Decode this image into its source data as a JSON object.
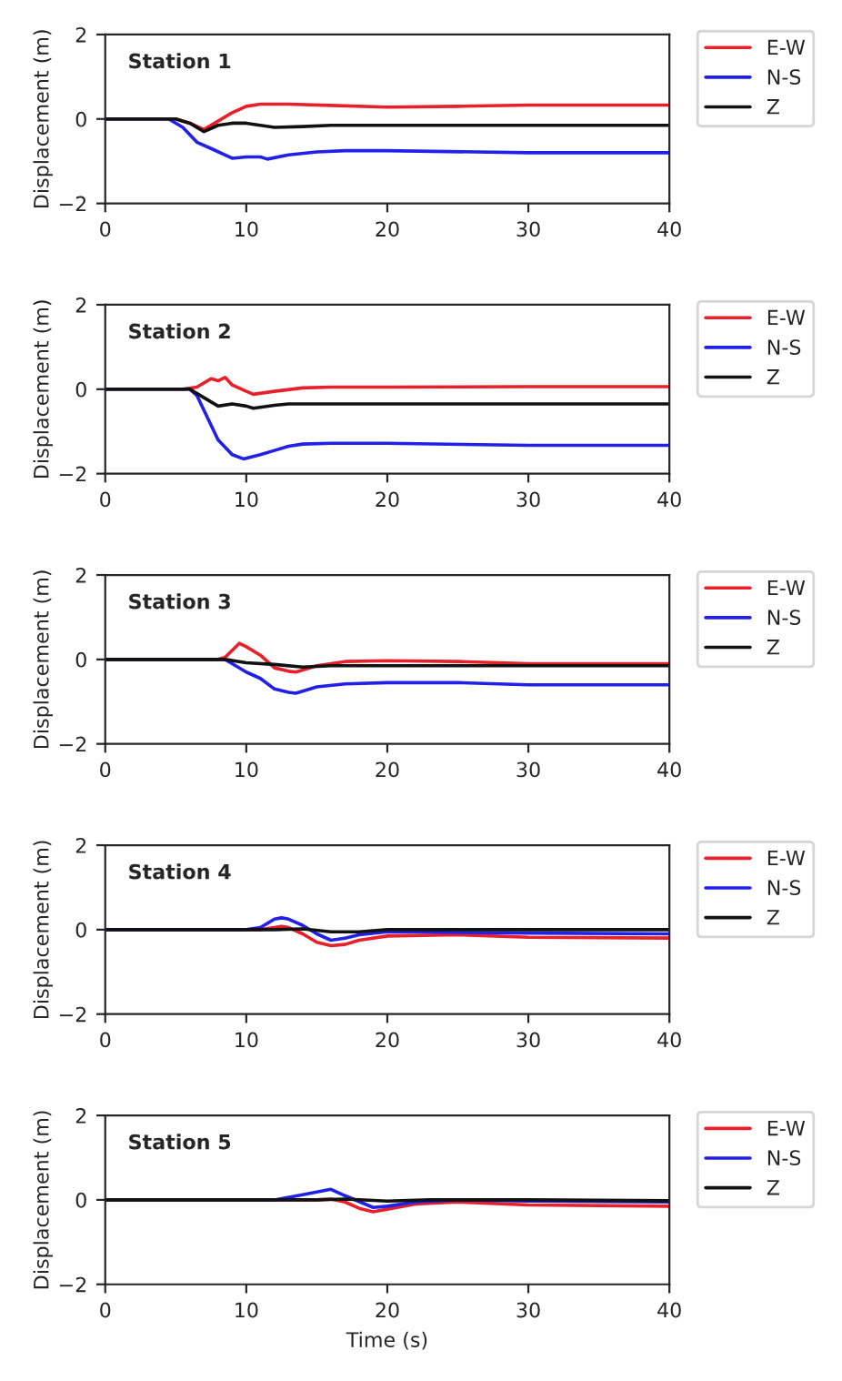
{
  "chart_data": [
    {
      "type": "line",
      "title": "Station 1",
      "ylabel": "Displacement (m)",
      "xlim": [
        0,
        40
      ],
      "xticks": [
        0,
        10,
        20,
        30,
        40
      ],
      "ylim": [
        -2,
        2
      ],
      "yticks": [
        -2,
        0,
        2
      ],
      "legend": "right",
      "grid": false,
      "series": [
        {
          "name": "E-W",
          "color": "#e8202a",
          "x": [
            0,
            5,
            6,
            7,
            8,
            9,
            10,
            11,
            13,
            16,
            20,
            25,
            30,
            40
          ],
          "values": [
            0,
            0,
            -0.1,
            -0.25,
            -0.05,
            0.15,
            0.3,
            0.35,
            0.35,
            0.32,
            0.28,
            0.3,
            0.33,
            0.33
          ]
        },
        {
          "name": "N-S",
          "color": "#2020e8",
          "x": [
            0,
            4.5,
            5.5,
            6.5,
            7.5,
            9,
            10,
            11,
            11.5,
            13,
            15,
            17,
            20,
            30,
            40
          ],
          "values": [
            0,
            0,
            -0.2,
            -0.55,
            -0.7,
            -0.93,
            -0.9,
            -0.9,
            -0.95,
            -0.85,
            -0.78,
            -0.75,
            -0.75,
            -0.8,
            -0.8
          ]
        },
        {
          "name": "Z",
          "color": "#111111",
          "x": [
            0,
            5,
            6,
            7,
            8,
            9,
            10,
            11,
            12,
            14,
            16,
            20,
            40
          ],
          "values": [
            0,
            0,
            -0.1,
            -0.3,
            -0.15,
            -0.1,
            -0.1,
            -0.15,
            -0.2,
            -0.18,
            -0.15,
            -0.15,
            -0.15
          ]
        }
      ]
    },
    {
      "type": "line",
      "title": "Station 2",
      "ylabel": "Displacement (m)",
      "xlim": [
        0,
        40
      ],
      "xticks": [
        0,
        10,
        20,
        30,
        40
      ],
      "ylim": [
        -2,
        2
      ],
      "yticks": [
        -2,
        0,
        2
      ],
      "legend": "right",
      "grid": false,
      "series": [
        {
          "name": "E-W",
          "color": "#e8202a",
          "x": [
            0,
            5.5,
            6.5,
            7.5,
            8,
            8.5,
            9,
            10,
            10.5,
            12,
            14,
            16,
            20,
            30,
            40
          ],
          "values": [
            0,
            0,
            0.05,
            0.25,
            0.2,
            0.28,
            0.1,
            -0.05,
            -0.12,
            -0.05,
            0.03,
            0.05,
            0.05,
            0.06,
            0.06
          ]
        },
        {
          "name": "N-S",
          "color": "#2020e8",
          "x": [
            0,
            6,
            6.5,
            7,
            8,
            9,
            9.8,
            11,
            12,
            13,
            14,
            16,
            20,
            30,
            40
          ],
          "values": [
            0,
            0,
            -0.15,
            -0.5,
            -1.2,
            -1.55,
            -1.65,
            -1.55,
            -1.45,
            -1.35,
            -1.3,
            -1.28,
            -1.28,
            -1.33,
            -1.33
          ]
        },
        {
          "name": "Z",
          "color": "#111111",
          "x": [
            0,
            6,
            7,
            8,
            9,
            10,
            10.5,
            12,
            13,
            16,
            20,
            40
          ],
          "values": [
            0,
            0,
            -0.2,
            -0.4,
            -0.35,
            -0.4,
            -0.45,
            -0.38,
            -0.35,
            -0.35,
            -0.35,
            -0.35
          ]
        }
      ]
    },
    {
      "type": "line",
      "title": "Station 3",
      "ylabel": "Displacement (m)",
      "xlim": [
        0,
        40
      ],
      "xticks": [
        0,
        10,
        20,
        30,
        40
      ],
      "ylim": [
        -2,
        2
      ],
      "yticks": [
        -2,
        0,
        2
      ],
      "legend": "right",
      "grid": false,
      "series": [
        {
          "name": "E-W",
          "color": "#e8202a",
          "x": [
            0,
            8,
            8.5,
            9.5,
            10,
            11,
            12,
            13,
            13.5,
            14,
            15,
            17,
            20,
            25,
            30,
            40
          ],
          "values": [
            0,
            0,
            0.05,
            0.38,
            0.3,
            0.1,
            -0.2,
            -0.28,
            -0.3,
            -0.25,
            -0.15,
            -0.05,
            -0.03,
            -0.05,
            -0.1,
            -0.1
          ]
        },
        {
          "name": "N-S",
          "color": "#2020e8",
          "x": [
            0,
            8.5,
            9,
            10,
            11,
            12,
            13,
            13.5,
            14,
            15,
            17,
            20,
            25,
            30,
            40
          ],
          "values": [
            0,
            0,
            -0.1,
            -0.3,
            -0.45,
            -0.7,
            -0.78,
            -0.8,
            -0.75,
            -0.65,
            -0.58,
            -0.55,
            -0.55,
            -0.6,
            -0.6
          ]
        },
        {
          "name": "Z",
          "color": "#111111",
          "x": [
            0,
            8.5,
            10,
            12,
            14,
            16,
            20,
            40
          ],
          "values": [
            0,
            0,
            -0.08,
            -0.12,
            -0.18,
            -0.15,
            -0.15,
            -0.15
          ]
        }
      ]
    },
    {
      "type": "line",
      "title": "Station 4",
      "ylabel": "Displacement (m)",
      "xlim": [
        0,
        40
      ],
      "xticks": [
        0,
        10,
        20,
        30,
        40
      ],
      "ylim": [
        -2,
        2
      ],
      "yticks": [
        -2,
        0,
        2
      ],
      "legend": "right",
      "grid": false,
      "series": [
        {
          "name": "E-W",
          "color": "#e8202a",
          "x": [
            0,
            10,
            11,
            12.5,
            13,
            14,
            15,
            16,
            17,
            18,
            20,
            25,
            30,
            40
          ],
          "values": [
            0,
            0,
            0,
            0.08,
            0.05,
            -0.1,
            -0.3,
            -0.38,
            -0.35,
            -0.25,
            -0.15,
            -0.12,
            -0.18,
            -0.2
          ]
        },
        {
          "name": "N-S",
          "color": "#2020e8",
          "x": [
            0,
            10,
            11,
            12,
            12.5,
            13,
            14,
            15,
            16,
            17,
            18,
            20,
            30,
            40
          ],
          "values": [
            0,
            0,
            0.05,
            0.25,
            0.28,
            0.25,
            0.1,
            -0.1,
            -0.25,
            -0.2,
            -0.12,
            -0.05,
            -0.08,
            -0.1
          ]
        },
        {
          "name": "Z",
          "color": "#111111",
          "x": [
            0,
            12,
            14,
            16,
            18,
            20,
            40
          ],
          "values": [
            0,
            0,
            0.02,
            -0.05,
            -0.05,
            0,
            0
          ]
        }
      ]
    },
    {
      "type": "line",
      "title": "Station 5",
      "xlabel": "Time (s)",
      "ylabel": "Displacement (m)",
      "xlim": [
        0,
        40
      ],
      "xticks": [
        0,
        10,
        20,
        30,
        40
      ],
      "ylim": [
        -2,
        2
      ],
      "yticks": [
        -2,
        0,
        2
      ],
      "legend": "right",
      "grid": false,
      "series": [
        {
          "name": "E-W",
          "color": "#e8202a",
          "x": [
            0,
            15,
            16,
            17,
            18,
            19,
            20,
            22,
            25,
            30,
            40
          ],
          "values": [
            0,
            0,
            0.02,
            -0.05,
            -0.2,
            -0.28,
            -0.22,
            -0.1,
            -0.05,
            -0.12,
            -0.15
          ]
        },
        {
          "name": "N-S",
          "color": "#2020e8",
          "x": [
            0,
            12,
            14,
            16,
            17,
            19,
            20,
            22,
            25,
            30,
            40
          ],
          "values": [
            0,
            0,
            0.12,
            0.25,
            0.1,
            -0.18,
            -0.15,
            -0.05,
            0,
            -0.03,
            -0.05
          ]
        },
        {
          "name": "Z",
          "color": "#111111",
          "x": [
            0,
            15,
            17,
            20,
            23,
            30,
            40
          ],
          "values": [
            0,
            0,
            0.02,
            -0.03,
            0,
            0,
            -0.02
          ]
        }
      ]
    }
  ]
}
